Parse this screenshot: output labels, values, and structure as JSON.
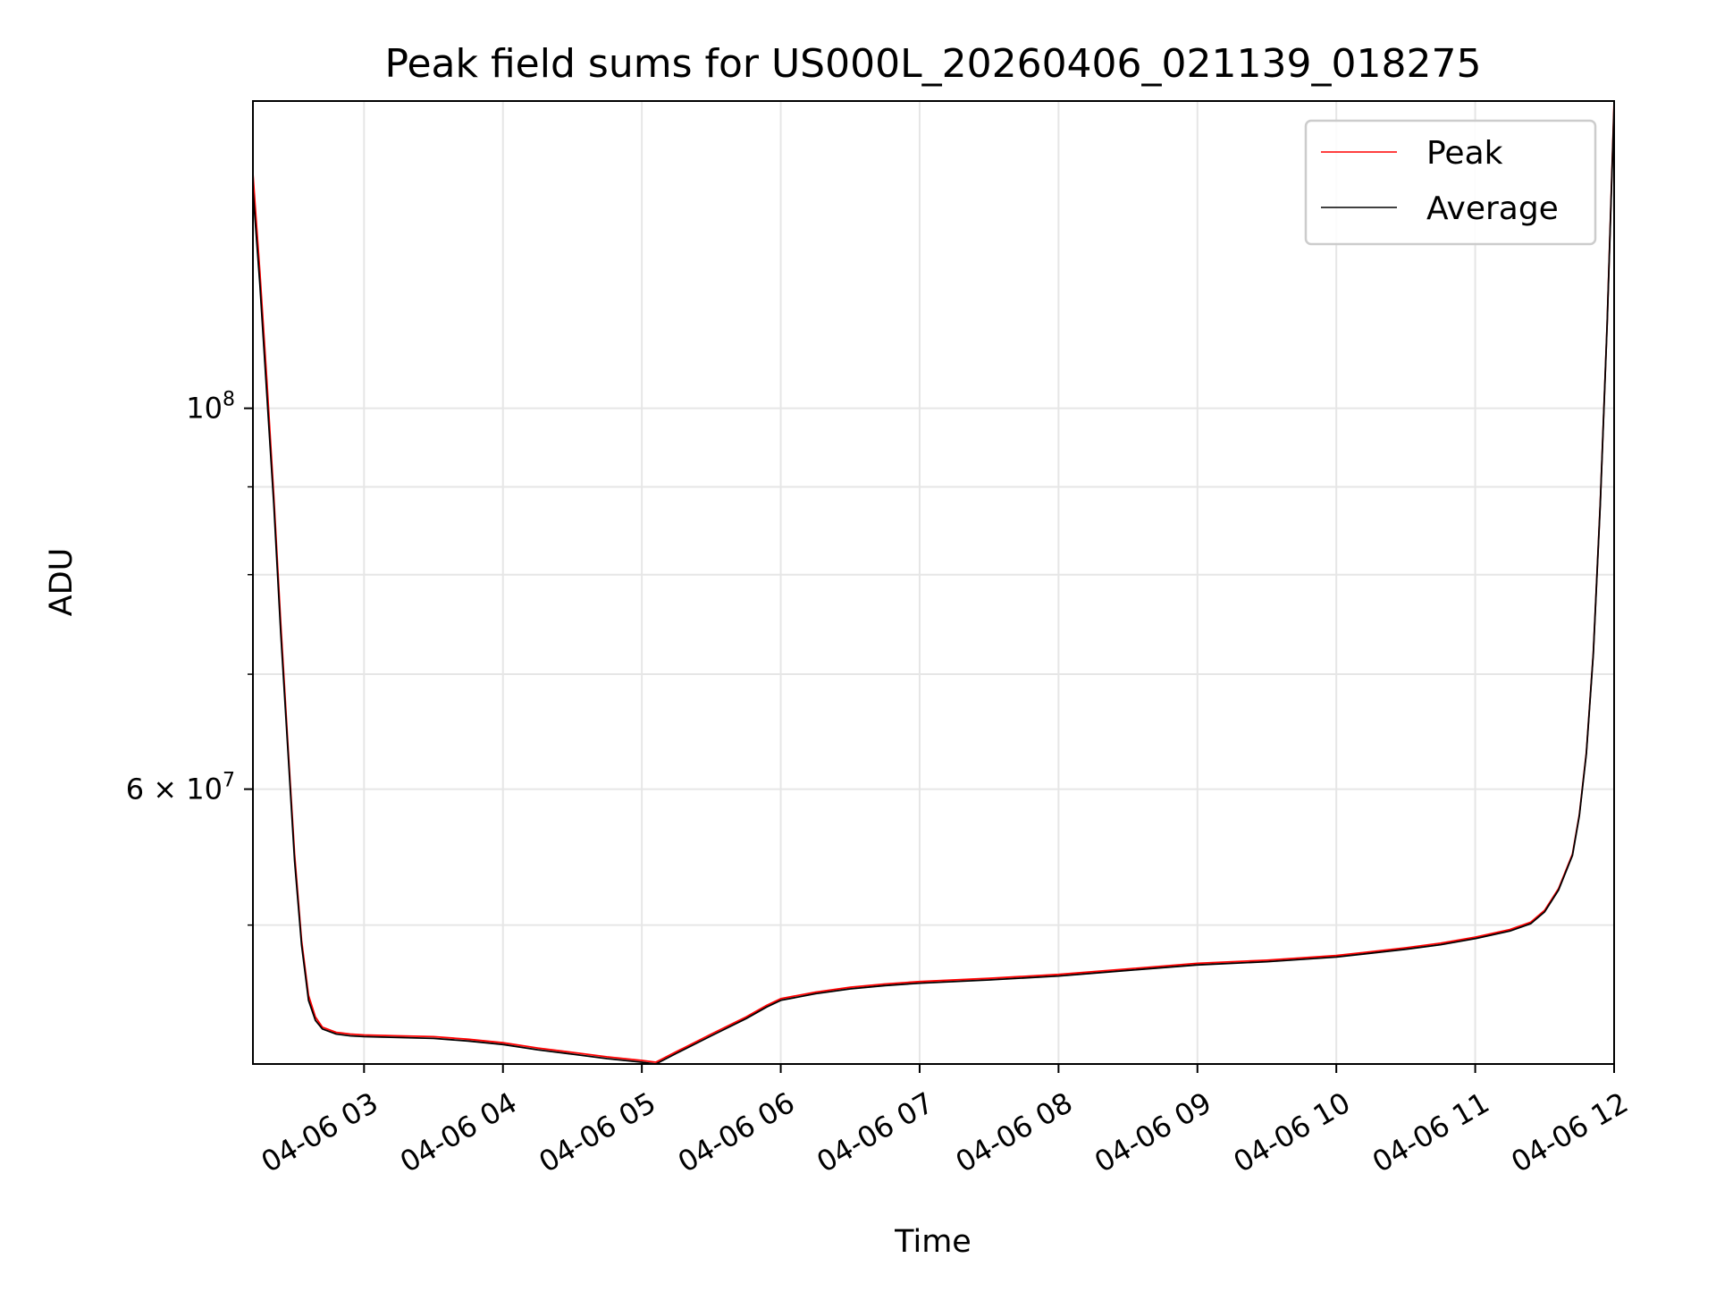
{
  "chart_data": {
    "type": "line",
    "title": "Peak field sums for US000L_20260406_021139_018275",
    "xlabel": "Time",
    "ylabel": "ADU",
    "y_scale": "log",
    "ylim": [
      41500000,
      151000000
    ],
    "xlim_hours": [
      2.2,
      12.0
    ],
    "x_ticks": [
      {
        "hour": 3,
        "label": "04-06 03"
      },
      {
        "hour": 4,
        "label": "04-06 04"
      },
      {
        "hour": 5,
        "label": "04-06 05"
      },
      {
        "hour": 6,
        "label": "04-06 06"
      },
      {
        "hour": 7,
        "label": "04-06 07"
      },
      {
        "hour": 8,
        "label": "04-06 08"
      },
      {
        "hour": 9,
        "label": "04-06 09"
      },
      {
        "hour": 10,
        "label": "04-06 10"
      },
      {
        "hour": 11,
        "label": "04-06 11"
      },
      {
        "hour": 12,
        "label": "04-06 12"
      }
    ],
    "y_major_ticks": [
      {
        "value": 100000000,
        "base": "10",
        "exp": "8",
        "prefix": ""
      },
      {
        "value": 60000000,
        "base": "10",
        "exp": "7",
        "prefix": "6 × "
      }
    ],
    "y_minor_ticks": [
      50000000,
      70000000,
      80000000,
      90000000
    ],
    "grid": true,
    "legend_position": "top-right",
    "series": [
      {
        "name": "Peak",
        "color": "#ff0000",
        "x_hours": [
          2.2,
          2.25,
          2.3,
          2.35,
          2.4,
          2.45,
          2.5,
          2.55,
          2.6,
          2.65,
          2.7,
          2.8,
          2.9,
          3.0,
          3.25,
          3.5,
          3.75,
          4.0,
          4.25,
          4.5,
          4.75,
          5.0,
          5.1,
          5.25,
          5.5,
          5.75,
          5.9,
          6.0,
          6.25,
          6.5,
          6.75,
          7.0,
          7.5,
          8.0,
          8.5,
          9.0,
          9.5,
          10.0,
          10.5,
          10.75,
          11.0,
          11.25,
          11.4,
          11.5,
          11.6,
          11.7,
          11.75,
          11.8,
          11.85,
          11.9,
          11.95,
          12.0
        ],
        "values": [
          137000000,
          120000000,
          104000000,
          89000000,
          75000000,
          64000000,
          55000000,
          49000000,
          45500000,
          44200000,
          43600000,
          43300000,
          43200000,
          43150000,
          43100000,
          43050000,
          42900000,
          42700000,
          42400000,
          42150000,
          41900000,
          41700000,
          41600000,
          42200000,
          43200000,
          44200000,
          44900000,
          45300000,
          45700000,
          46000000,
          46200000,
          46350000,
          46550000,
          46800000,
          47150000,
          47500000,
          47700000,
          48000000,
          48500000,
          48800000,
          49200000,
          49700000,
          50200000,
          51000000,
          52500000,
          55000000,
          58000000,
          63000000,
          72000000,
          88000000,
          112000000,
          151000000
        ]
      },
      {
        "name": "Average",
        "color": "#000000",
        "x_hours": [
          2.2,
          2.25,
          2.3,
          2.35,
          2.4,
          2.45,
          2.5,
          2.55,
          2.6,
          2.65,
          2.7,
          2.8,
          2.9,
          3.0,
          3.25,
          3.5,
          3.75,
          4.0,
          4.25,
          4.5,
          4.75,
          5.0,
          5.1,
          5.25,
          5.5,
          5.75,
          5.9,
          6.0,
          6.25,
          6.5,
          6.75,
          7.0,
          7.5,
          8.0,
          8.5,
          9.0,
          9.5,
          10.0,
          10.5,
          10.75,
          11.0,
          11.25,
          11.4,
          11.5,
          11.6,
          11.7,
          11.75,
          11.8,
          11.85,
          11.9,
          11.95,
          12.0
        ],
        "values": [
          134000000,
          118000000,
          102000000,
          88000000,
          74000000,
          63500000,
          54500000,
          48700000,
          45200000,
          44000000,
          43500000,
          43200000,
          43100000,
          43050000,
          43000000,
          42950000,
          42800000,
          42600000,
          42300000,
          42050000,
          41800000,
          41600000,
          41500000,
          42100000,
          43100000,
          44100000,
          44800000,
          45200000,
          45600000,
          45900000,
          46100000,
          46250000,
          46450000,
          46700000,
          47050000,
          47400000,
          47600000,
          47900000,
          48400000,
          48700000,
          49100000,
          49600000,
          50100000,
          50900000,
          52400000,
          54900000,
          57900000,
          62900000,
          71900000,
          87900000,
          111900000,
          150000000
        ]
      }
    ]
  }
}
